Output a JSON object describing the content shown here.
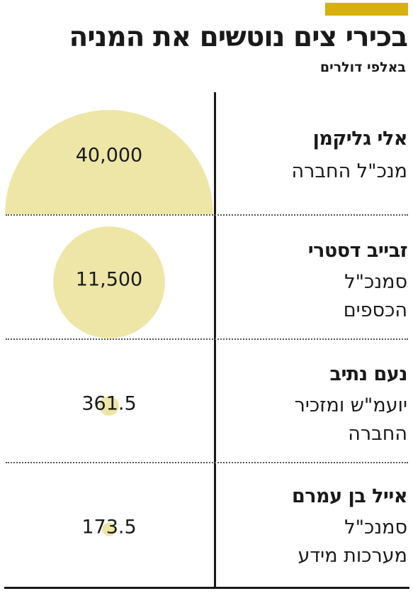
{
  "header": {
    "title": "בכירי צים נוטשים את המניה",
    "subtitle": "באלפי דולרים"
  },
  "colors": {
    "accent": "#d8b00c",
    "bubble": "#ede6a6",
    "text": "#1a1a1a"
  },
  "rows": [
    {
      "name": "אלי גליקמן",
      "role_lines": [
        "מנכ\"ל החברה"
      ]
    },
    {
      "name": "זבייב דסטרי",
      "role_lines": [
        "סמנכ\"ל",
        "הכספים"
      ]
    },
    {
      "name": "נעם נתיב",
      "role_lines": [
        "יועמ\"ש ומזכיר",
        "החברה"
      ]
    },
    {
      "name": "אייל בן עמרם",
      "role_lines": [
        "סמנכ\"ל",
        "מערכות מידע"
      ]
    }
  ],
  "chart_data": {
    "type": "bubble",
    "title": "בכירי צים נוטשים את המניה",
    "unit": "באלפי דולרים",
    "categories": [
      "אלי גליקמן",
      "זבייב דסטרי",
      "נעם נתיב",
      "אייל בן עמרם"
    ],
    "values": [
      40000,
      11500,
      361.5,
      173.5
    ],
    "value_labels": [
      "40,000",
      "11,500",
      "361.5",
      "173.5"
    ]
  }
}
